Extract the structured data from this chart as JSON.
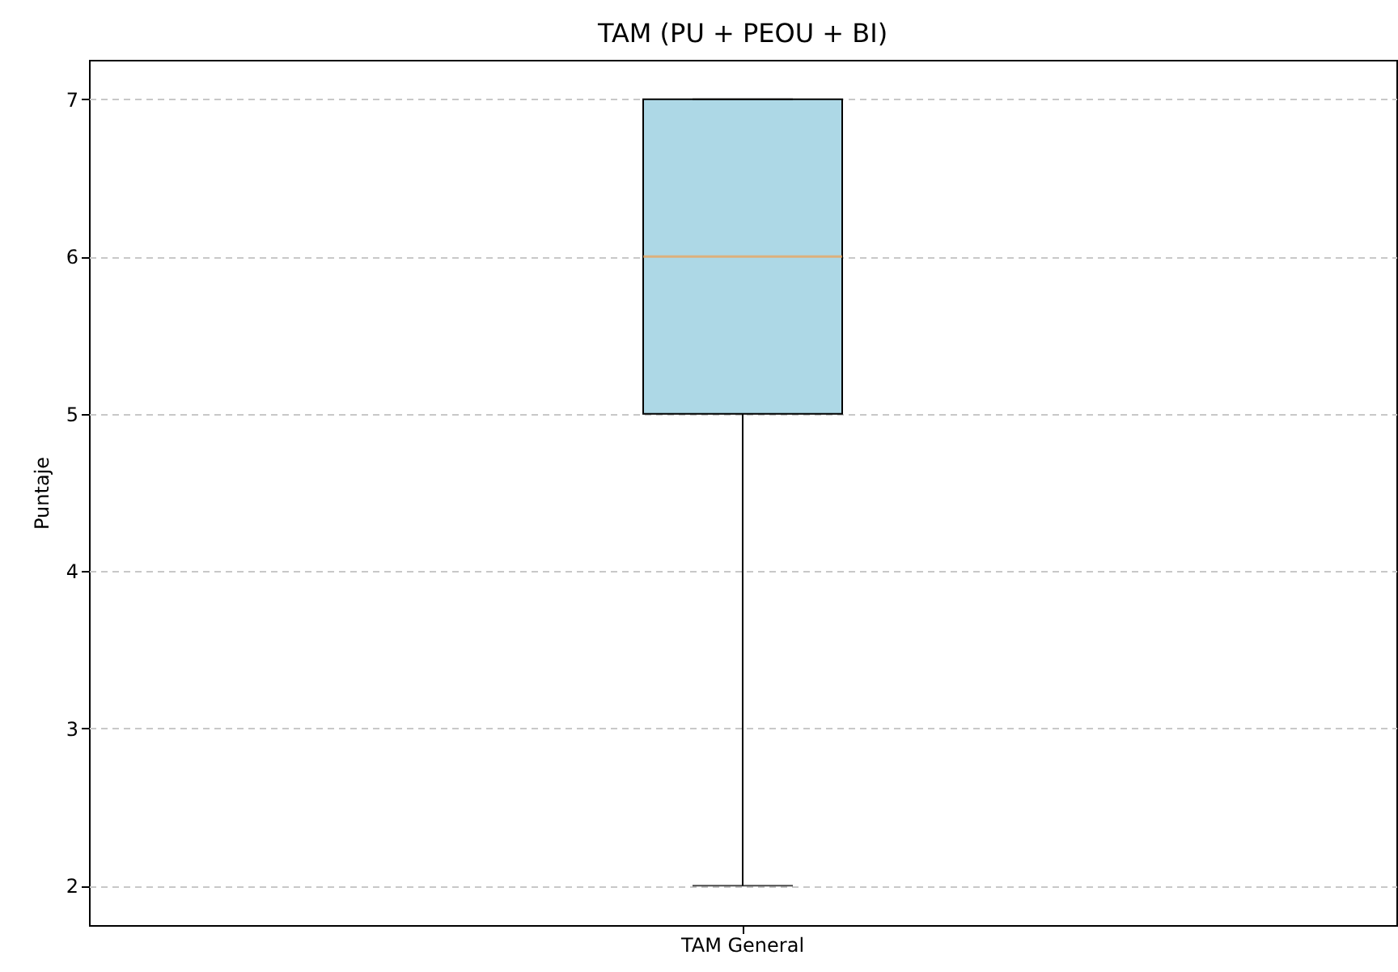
{
  "chart_data": {
    "type": "box",
    "title": "TAM (PU + PEOU + BI)",
    "ylabel": "Puntaje",
    "categories": [
      "TAM General"
    ],
    "series": [
      {
        "color": "#add8e6",
        "boxes": [
          {
            "low": 2,
            "q1": 5,
            "median": 6,
            "q3": 7,
            "high": 7
          }
        ]
      }
    ],
    "ylim": [
      1.75,
      7.25
    ],
    "yticks": [
      2,
      3,
      4,
      5,
      6,
      7
    ],
    "grid": "y"
  }
}
